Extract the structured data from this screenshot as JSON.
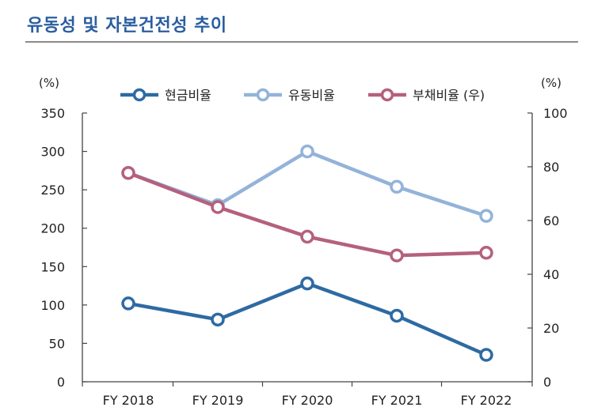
{
  "title": "유동성 및 자본건전성 추이",
  "chart_data": {
    "type": "line",
    "categories": [
      "FY 2018",
      "FY 2019",
      "FY 2020",
      "FY 2021",
      "FY 2022"
    ],
    "left_axis": {
      "unit_label": "(%)",
      "min": 0,
      "max": 350,
      "ticks": [
        0,
        50,
        100,
        150,
        200,
        250,
        300,
        350
      ]
    },
    "right_axis": {
      "unit_label": "(%)",
      "min": 0,
      "max": 100,
      "ticks": [
        0,
        20,
        40,
        60,
        80,
        100
      ]
    },
    "series": [
      {
        "name": "현금비율",
        "axis": "left",
        "color": "#2e6aa3",
        "values": [
          102,
          81,
          128,
          86,
          35
        ]
      },
      {
        "name": "유동비율",
        "axis": "left",
        "color": "#93b3d9",
        "values": [
          272,
          230,
          300,
          254,
          216
        ]
      },
      {
        "name": "부채비율 (우)",
        "axis": "right",
        "color": "#b5607e",
        "values": [
          77.7,
          65,
          54,
          47,
          48
        ]
      }
    ],
    "grid": false,
    "legend_position": "top"
  }
}
